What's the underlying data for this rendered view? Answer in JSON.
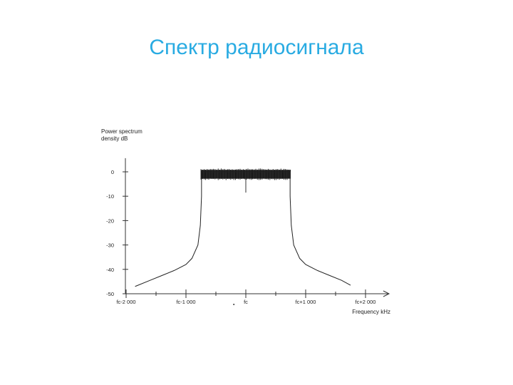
{
  "slide": {
    "title": "Спектр радиосигнала",
    "title_color": "#29abe2"
  },
  "chart_data": {
    "type": "line",
    "title": "",
    "ylabel_lines": [
      "Power spectrum",
      "density dB"
    ],
    "xlabel": "Frequency kHz",
    "y_ticks": [
      {
        "value": 0,
        "label": "0"
      },
      {
        "value": -10,
        "label": "-10"
      },
      {
        "value": -20,
        "label": "-20"
      },
      {
        "value": -30,
        "label": "-30"
      },
      {
        "value": -40,
        "label": "-40"
      },
      {
        "value": -50,
        "label": "-50"
      }
    ],
    "x_ticks": [
      {
        "value": -2000,
        "label": "fc-2 000"
      },
      {
        "value": -1000,
        "label": "fc-1 000"
      },
      {
        "value": 0,
        "label": "fc"
      },
      {
        "value": 1000,
        "label": "fc+1 000"
      },
      {
        "value": 2000,
        "label": "fc+2 000"
      }
    ],
    "ylim": [
      -50,
      5
    ],
    "xlim": [
      -2000,
      2200
    ],
    "grid": false,
    "series": [
      {
        "color": "#222222",
        "x": [
          -1850,
          -1600,
          -1400,
          -1200,
          -1000,
          -900,
          -800,
          -760,
          -740,
          -740,
          -740,
          740,
          740,
          740,
          760,
          800,
          900,
          1000,
          1200,
          1400,
          1600,
          1750
        ],
        "y": [
          -47,
          -44.5,
          -42.5,
          -40.5,
          -38,
          -35.5,
          -30,
          -22,
          -10,
          -2.5,
          0,
          0,
          -2.5,
          -10,
          -22,
          -30,
          -35.5,
          -38,
          -40.5,
          -42.5,
          -44.5,
          -46.5
        ]
      }
    ],
    "noise_band": {
      "x_range": [
        -750,
        750
      ],
      "y_range": [
        -2.8,
        0.8
      ],
      "color": "#111111"
    },
    "center_marker": {
      "x": 0,
      "y_range": [
        -8.5,
        -2.5
      ]
    }
  }
}
